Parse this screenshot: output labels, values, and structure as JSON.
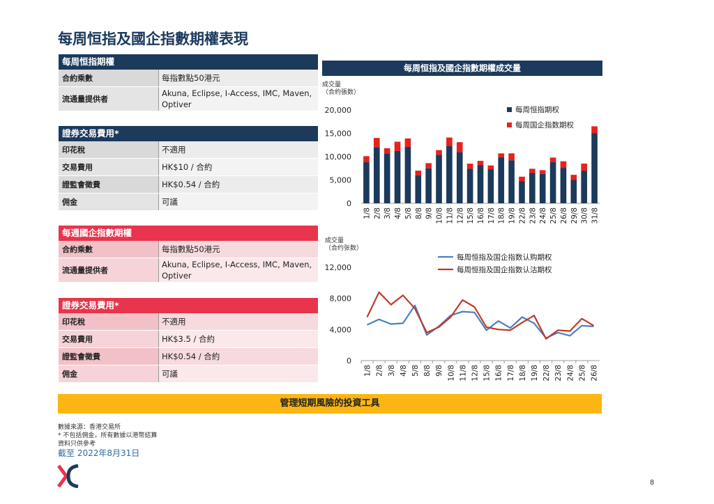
{
  "page": {
    "title": "每周恒指及國企指數期權表現",
    "page_number": "8"
  },
  "hsi_panel": {
    "header": "每周恒指期權",
    "rows": [
      {
        "label": "合約乘數",
        "value": "每指數點50港元"
      },
      {
        "label": "流通量提供者",
        "value": "Akuna, Eclipse, I-Access, IMC, Maven, Optiver"
      }
    ]
  },
  "hsi_fees": {
    "header": "證券交易費用*",
    "rows": [
      {
        "label": "印花稅",
        "value": "不適用"
      },
      {
        "label": "交易費用",
        "value": "HK$10 / 合約"
      },
      {
        "label": "證監會徵費",
        "value": "HK$0.54 / 合約"
      },
      {
        "label": "佣金",
        "value": "可議"
      }
    ]
  },
  "hhi_panel": {
    "header": "每週國企指數期權",
    "rows": [
      {
        "label": "合約乘數",
        "value": "每指數點50港元"
      },
      {
        "label": "流通量提供者",
        "value": "Akuna, Eclipse, I-Access, IMC, Maven, Optiver"
      }
    ]
  },
  "hhi_fees": {
    "header": "證券交易費用*",
    "rows": [
      {
        "label": "印花稅",
        "value": "不適用"
      },
      {
        "label": "交易費用",
        "value": "HK$3.5 / 合約"
      },
      {
        "label": "證監會徵費",
        "value": "HK$0.54 / 合約"
      },
      {
        "label": "佣金",
        "value": "可議"
      }
    ]
  },
  "chart_data": [
    {
      "type": "bar",
      "stacked": true,
      "title": "每周恒指及國企指數期權成交量",
      "ylabel": "成交量\n（合約張数）",
      "ylim": [
        0,
        20000
      ],
      "yticks": [
        "0",
        "5,000",
        "10,000",
        "15,000",
        "20,000"
      ],
      "legend_position": "top-right",
      "categories": [
        "1/8",
        "2/8",
        "3/8",
        "4/8",
        "5/8",
        "8/8",
        "9/8",
        "10/8",
        "11/8",
        "12/8",
        "15/8",
        "16/8",
        "17/8",
        "18/8",
        "19/8",
        "22/8",
        "23/8",
        "24/8",
        "25/8",
        "26/8",
        "29/8",
        "30/8",
        "31/8"
      ],
      "series": [
        {
          "name": "每周恒指期权",
          "color": "#1b3a5c",
          "values": [
            8800,
            12000,
            10700,
            11200,
            12100,
            6000,
            7500,
            10400,
            12300,
            11000,
            7400,
            8200,
            7300,
            9900,
            9200,
            4700,
            6500,
            6300,
            8800,
            7600,
            5000,
            7000,
            15000
          ]
        },
        {
          "name": "每周国企指数期权",
          "color": "#e8211c",
          "values": [
            1300,
            2000,
            1100,
            2000,
            1800,
            1000,
            1100,
            1000,
            1800,
            2100,
            1100,
            900,
            800,
            800,
            1500,
            1000,
            900,
            800,
            1000,
            1400,
            1100,
            1500,
            1500
          ]
        }
      ]
    },
    {
      "type": "line",
      "ylabel": "成交量\n（合约张数）",
      "ylim": [
        0,
        12000
      ],
      "yticks": [
        "0",
        "4,000",
        "8,000",
        "12,000"
      ],
      "legend_position": "top-right",
      "categories": [
        "1/8",
        "2/8",
        "3/8",
        "4/8",
        "5/8",
        "8/8",
        "9/8",
        "10/8",
        "11/8",
        "12/8",
        "15/8",
        "16/8",
        "17/8",
        "18/8",
        "19/8",
        "22/8",
        "23/8",
        "24/8",
        "25/8",
        "26/8"
      ],
      "series": [
        {
          "name": "每周恒指及国企指数认购期权",
          "color": "#4a7fc1",
          "values": [
            4600,
            5300,
            4700,
            4800,
            7100,
            3300,
            4400,
            5800,
            6300,
            6200,
            3900,
            5100,
            4200,
            5600,
            4800,
            2900,
            3600,
            3200,
            4500,
            4400
          ]
        },
        {
          "name": "每周恒指及国企指数认沽期权",
          "color": "#c0392b",
          "values": [
            5600,
            8800,
            7200,
            8400,
            6700,
            3600,
            4300,
            5600,
            7800,
            6900,
            4300,
            4000,
            3900,
            4900,
            5800,
            2800,
            3900,
            3800,
            5400,
            4500
          ]
        }
      ]
    }
  ],
  "footer": {
    "source": "數據來源：香港交易所",
    "note1": "* 不包括佣金，所有數據以港幣結算",
    "note2": "資料只供參考",
    "as_of": "截至  2022年8月31日"
  },
  "banner": "管理短期風險的投資工具"
}
